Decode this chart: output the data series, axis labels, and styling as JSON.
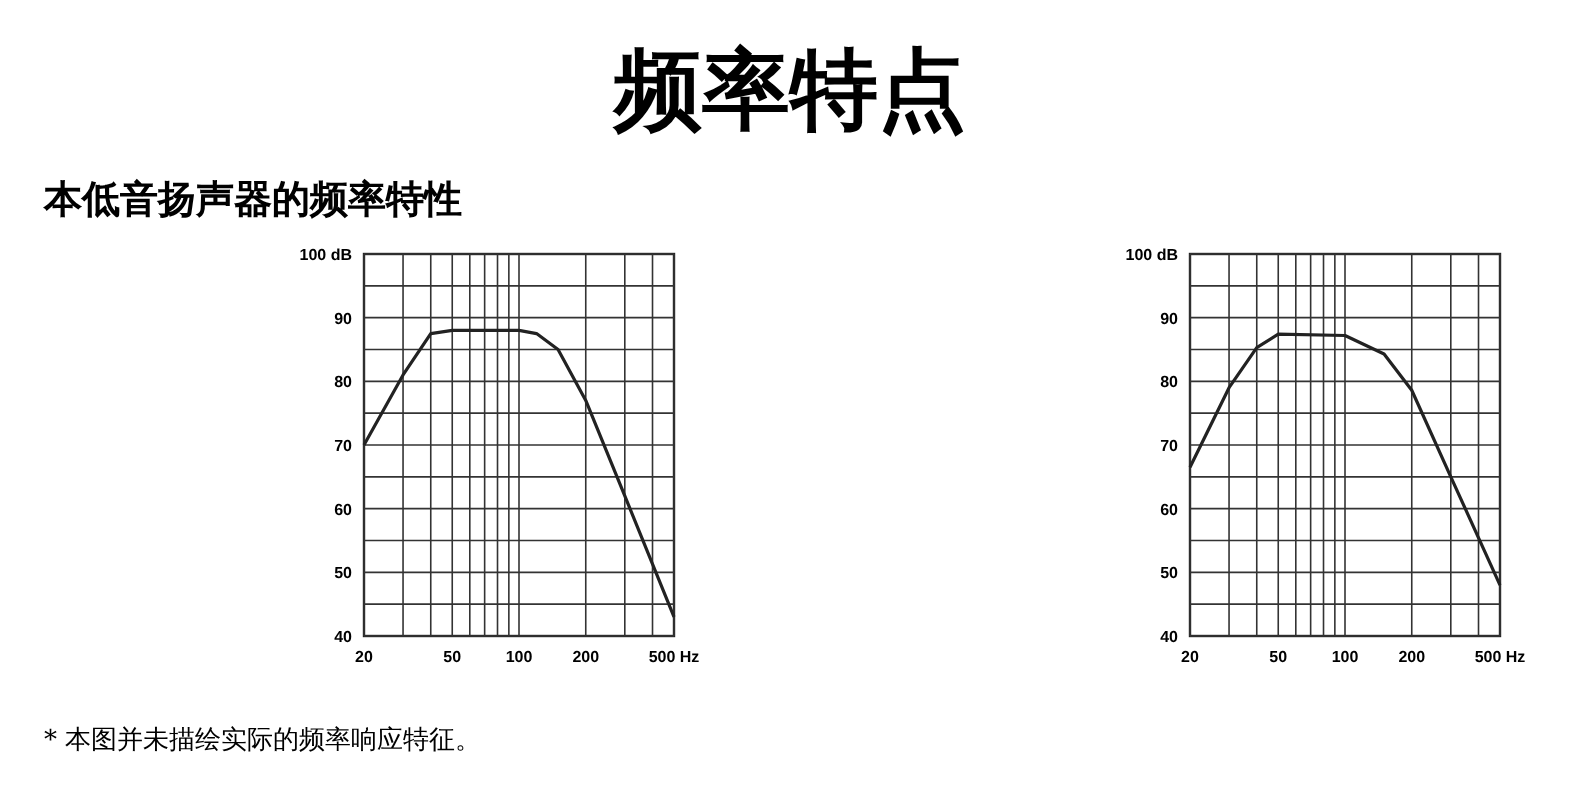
{
  "chart_data": [
    {
      "type": "line",
      "title": "频率特点",
      "subtitle": "本低音扬声器的频率特性",
      "annotations": [
        "* 本图并未描绘实际的频率响应特征。"
      ],
      "log": "x",
      "grid": true,
      "marker": "none",
      "line_style": "solid",
      "x": [
        20,
        30,
        40,
        50,
        100,
        120,
        150,
        200,
        300,
        500
      ],
      "series": [
        {
          "color": "#222222",
          "values": [
            70,
            81,
            87.5,
            88,
            88,
            87.5,
            85,
            77,
            62,
            43
          ]
        }
      ],
      "xlim": [
        20,
        500
      ],
      "xticks": [
        20,
        {
          "value": 30,
          "label": null
        },
        {
          "value": 40,
          "label": null
        },
        50,
        {
          "value": 60,
          "label": null
        },
        {
          "value": 70,
          "label": null
        },
        {
          "value": 80,
          "label": null
        },
        {
          "value": 90,
          "label": null
        },
        100,
        200,
        {
          "value": 300,
          "label": null
        },
        {
          "value": 400,
          "label": null
        },
        {
          "value": 500,
          "label": "500 Hz"
        }
      ],
      "ylim": [
        40,
        100
      ],
      "yticks": [
        40,
        {
          "value": 45,
          "label": null
        },
        50,
        {
          "value": 55,
          "label": null
        },
        60,
        {
          "value": 65,
          "label": null
        },
        70,
        {
          "value": 75,
          "label": null
        },
        80,
        {
          "value": 85,
          "label": null
        },
        90,
        {
          "value": 95,
          "label": null
        },
        {
          "value": 100,
          "label": "100 dB"
        }
      ]
    },
    {
      "type": "line",
      "log": "x",
      "grid": true,
      "marker": "none",
      "line_style": "solid",
      "x": [
        20,
        30,
        40,
        50,
        100,
        150,
        200,
        300,
        500
      ],
      "series": [
        {
          "color": "#222222",
          "values": [
            66.5,
            79,
            85.3,
            87.4,
            87.2,
            84.3,
            78.6,
            65,
            48
          ]
        }
      ],
      "xlim": [
        20,
        500
      ],
      "xticks": [
        20,
        {
          "value": 30,
          "label": null
        },
        {
          "value": 40,
          "label": null
        },
        50,
        {
          "value": 60,
          "label": null
        },
        {
          "value": 70,
          "label": null
        },
        {
          "value": 80,
          "label": null
        },
        {
          "value": 90,
          "label": null
        },
        100,
        200,
        {
          "value": 300,
          "label": null
        },
        {
          "value": 400,
          "label": null
        },
        {
          "value": 500,
          "label": "500 Hz"
        }
      ],
      "ylim": [
        40,
        100
      ],
      "yticks": [
        40,
        {
          "value": 45,
          "label": null
        },
        50,
        {
          "value": 55,
          "label": null
        },
        60,
        {
          "value": 65,
          "label": null
        },
        70,
        {
          "value": 75,
          "label": null
        },
        80,
        {
          "value": 85,
          "label": null
        },
        90,
        {
          "value": 95,
          "label": null
        },
        {
          "value": 100,
          "label": "100 dB"
        }
      ]
    }
  ]
}
